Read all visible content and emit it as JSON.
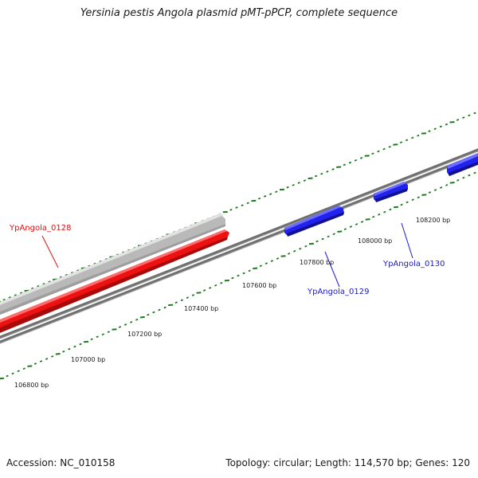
{
  "title": "Yersinia pestis Angola plasmid pMT-pPCP, complete sequence",
  "footer": {
    "accession_label": "Accession: NC_010158",
    "summary": "Topology: circular; Length: 114,570 bp; Genes: 120"
  },
  "colors": {
    "backbone": "#777777",
    "ticks": "#1f7a1f",
    "forward_gene": "#3333ee",
    "highlight_gene": "#ee1111",
    "shadow_gene": "#c8c8c8",
    "label_red": "#dd1111",
    "label_blue": "#1a1acc"
  },
  "position_labels": [
    "106800 bp",
    "107000 bp",
    "107200 bp",
    "107400 bp",
    "107600 bp",
    "107800 bp",
    "108000 bp",
    "108200 bp"
  ],
  "genes": [
    {
      "name": "YpAngola_0128",
      "strand": "reverse",
      "color_key": "highlight_gene"
    },
    {
      "name": "YpAngola_0129",
      "strand": "forward",
      "color_key": "forward_gene"
    },
    {
      "name": "YpAngola_0130",
      "strand": "forward",
      "color_key": "forward_gene"
    }
  ]
}
